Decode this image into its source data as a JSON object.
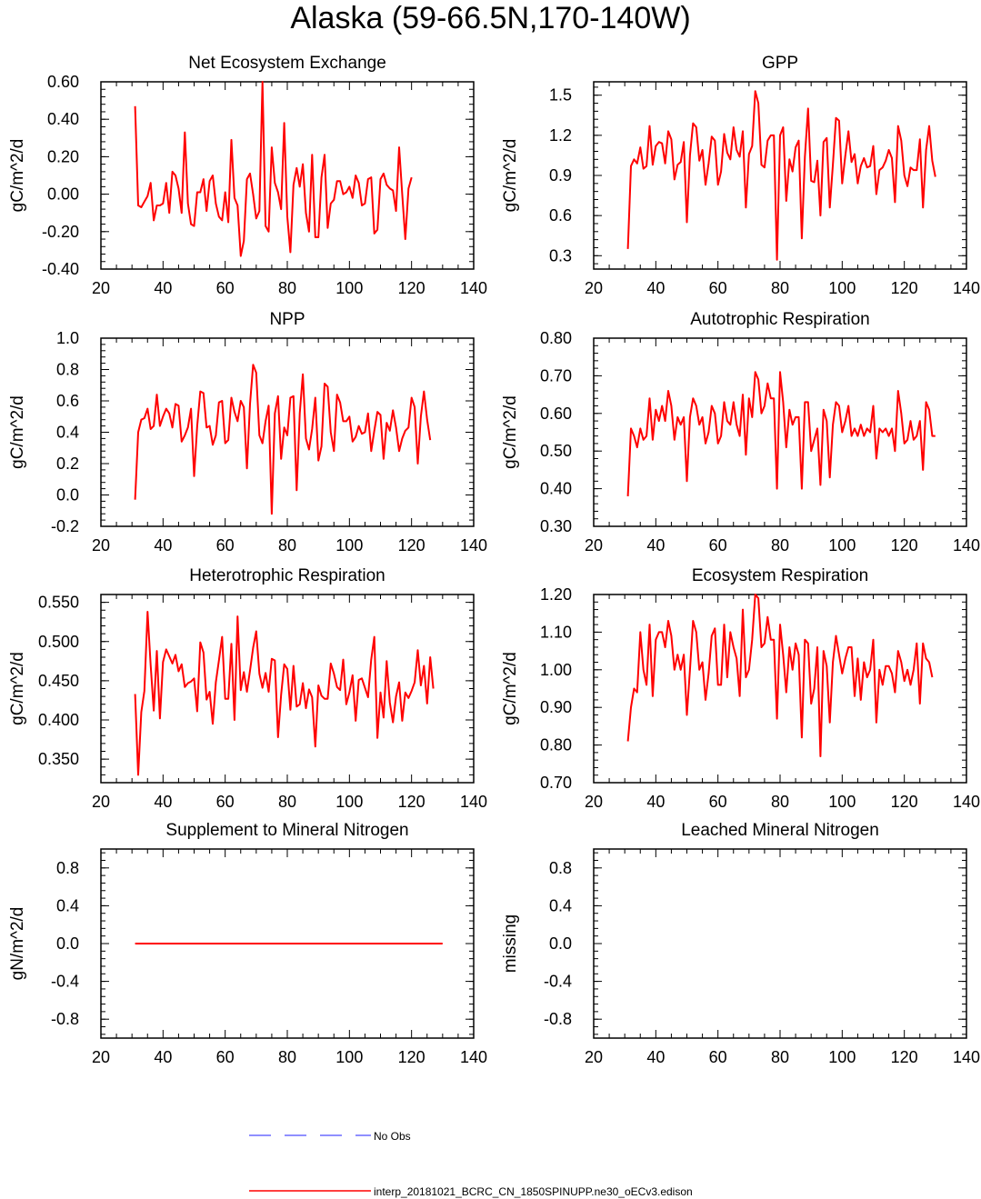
{
  "title": "Alaska (59-66.5N,170-140W)",
  "colors": {
    "model": "#ff0000",
    "obs": "#1f1fff",
    "axis": "#000000"
  },
  "chart_data": [
    {
      "type": "line",
      "title": "Net Ecosystem Exchange",
      "ylabel": "gC/m^2/d",
      "xlim": [
        20,
        140
      ],
      "ylim": [
        -0.4,
        0.6
      ],
      "yticks": [
        -0.4,
        -0.2,
        0.0,
        0.2,
        0.4,
        0.6
      ],
      "ytick_labels": [
        "-0.40",
        "-0.20",
        "0.00",
        "0.20",
        "0.40",
        "0.60"
      ],
      "xticks": [
        20,
        40,
        60,
        80,
        100,
        120,
        140
      ],
      "x_start": 31,
      "series": [
        {
          "name": "interp_20181021_BCRC_CN_1850SPINUPP.ne30_oECv3.edison",
          "values": [
            0.47,
            -0.06,
            -0.07,
            -0.04,
            -0.01,
            0.06,
            -0.14,
            -0.06,
            -0.06,
            -0.05,
            0.06,
            -0.1,
            0.12,
            0.1,
            0.03,
            -0.1,
            0.33,
            -0.05,
            -0.16,
            -0.17,
            0.01,
            0.01,
            0.08,
            -0.09,
            0.07,
            0.1,
            -0.05,
            -0.12,
            -0.14,
            0.01,
            -0.15,
            0.29,
            -0.02,
            -0.06,
            -0.33,
            -0.25,
            0.08,
            0.11,
            0.0,
            -0.13,
            -0.09,
            0.6,
            -0.17,
            -0.2,
            0.25,
            0.06,
            0.01,
            -0.08,
            0.38,
            -0.12,
            -0.31,
            0.05,
            0.14,
            0.04,
            0.16,
            -0.1,
            -0.2,
            0.21,
            -0.23,
            -0.23,
            0.09,
            0.21,
            -0.18,
            -0.05,
            -0.03,
            0.07,
            0.07,
            0.0,
            0.01,
            0.04,
            -0.02,
            0.1,
            0.06,
            -0.06,
            -0.05,
            0.08,
            0.09,
            -0.21,
            -0.19,
            0.08,
            0.11,
            0.05,
            0.03,
            0.02,
            -0.09,
            0.25,
            0.0,
            -0.24,
            0.03,
            0.09
          ]
        }
      ]
    },
    {
      "type": "line",
      "title": "GPP",
      "ylabel": "gC/m^2/d",
      "xlim": [
        20,
        140
      ],
      "ylim": [
        0.2,
        1.6
      ],
      "yticks": [
        0.3,
        0.6,
        0.9,
        1.2,
        1.5
      ],
      "ytick_labels": [
        "0.3",
        "0.6",
        "0.9",
        "1.2",
        "1.5"
      ],
      "xticks": [
        20,
        40,
        60,
        80,
        100,
        120,
        140
      ],
      "x_start": 31,
      "series": [
        {
          "name": "interp_20181021_BCRC_CN_1850SPINUPP.ne30_oECv3.edison",
          "values": [
            0.35,
            0.97,
            1.02,
            0.99,
            1.11,
            0.95,
            0.97,
            1.27,
            0.98,
            1.12,
            1.15,
            1.14,
            0.99,
            1.23,
            1.17,
            0.87,
            0.98,
            1.0,
            1.15,
            0.55,
            1.05,
            1.29,
            1.26,
            1.01,
            1.09,
            0.83,
            0.99,
            1.19,
            1.16,
            0.83,
            0.93,
            1.21,
            1.07,
            1.02,
            1.26,
            1.09,
            1.04,
            1.23,
            0.66,
            1.06,
            1.12,
            1.53,
            1.44,
            0.98,
            0.96,
            1.16,
            1.2,
            1.2,
            0.27,
            1.2,
            1.26,
            0.71,
            1.02,
            0.93,
            1.11,
            1.16,
            0.43,
            1.04,
            1.4,
            0.86,
            0.85,
            1.01,
            0.6,
            1.15,
            1.18,
            0.66,
            0.98,
            1.33,
            1.31,
            0.84,
            1.05,
            1.23,
            1.0,
            1.06,
            0.84,
            0.97,
            1.03,
            0.96,
            0.97,
            1.12,
            0.76,
            0.94,
            0.96,
            1.01,
            1.09,
            1.03,
            0.7,
            1.27,
            1.16,
            0.9,
            0.82,
            0.96,
            0.94,
            0.94,
            1.17,
            0.66,
            1.09,
            1.27,
            1.01,
            0.89
          ]
        }
      ]
    },
    {
      "type": "line",
      "title": "NPP",
      "ylabel": "gC/m^2/d",
      "xlim": [
        20,
        140
      ],
      "ylim": [
        -0.2,
        1.0
      ],
      "yticks": [
        -0.2,
        0.0,
        0.2,
        0.4,
        0.6,
        0.8,
        1.0
      ],
      "ytick_labels": [
        "-0.2",
        "0.0",
        "0.2",
        "0.4",
        "0.6",
        "0.8",
        "1.0"
      ],
      "xticks": [
        20,
        40,
        60,
        80,
        100,
        120,
        140
      ],
      "x_start": 31,
      "series": [
        {
          "name": "interp_20181021_BCRC_CN_1850SPINUPP.ne30_oECv3.edison",
          "values": [
            -0.03,
            0.4,
            0.48,
            0.49,
            0.55,
            0.42,
            0.44,
            0.64,
            0.44,
            0.5,
            0.55,
            0.52,
            0.43,
            0.58,
            0.57,
            0.34,
            0.38,
            0.43,
            0.55,
            0.12,
            0.44,
            0.66,
            0.65,
            0.43,
            0.44,
            0.32,
            0.38,
            0.59,
            0.6,
            0.33,
            0.35,
            0.62,
            0.53,
            0.47,
            0.6,
            0.56,
            0.17,
            0.58,
            0.83,
            0.78,
            0.38,
            0.33,
            0.47,
            0.57,
            -0.12,
            0.52,
            0.63,
            0.23,
            0.43,
            0.38,
            0.62,
            0.63,
            0.03,
            0.52,
            0.77,
            0.36,
            0.29,
            0.42,
            0.62,
            0.22,
            0.31,
            0.71,
            0.69,
            0.4,
            0.28,
            0.64,
            0.59,
            0.47,
            0.47,
            0.5,
            0.34,
            0.37,
            0.44,
            0.39,
            0.4,
            0.52,
            0.28,
            0.41,
            0.53,
            0.51,
            0.23,
            0.46,
            0.41,
            0.54,
            0.43,
            0.28,
            0.36,
            0.41,
            0.43,
            0.62,
            0.56,
            0.2,
            0.5,
            0.66,
            0.48,
            0.35
          ]
        }
      ]
    },
    {
      "type": "line",
      "title": "Autotrophic Respiration",
      "ylabel": "gC/m^2/d",
      "xlim": [
        20,
        140
      ],
      "ylim": [
        0.3,
        0.8
      ],
      "yticks": [
        0.3,
        0.4,
        0.5,
        0.6,
        0.7,
        0.8
      ],
      "ytick_labels": [
        "0.30",
        "0.40",
        "0.50",
        "0.60",
        "0.70",
        "0.80"
      ],
      "xticks": [
        20,
        40,
        60,
        80,
        100,
        120,
        140
      ],
      "x_start": 31,
      "series": [
        {
          "name": "interp_20181021_BCRC_CN_1850SPINUPP.ne30_oECv3.edison",
          "values": [
            0.38,
            0.56,
            0.54,
            0.51,
            0.56,
            0.53,
            0.54,
            0.64,
            0.53,
            0.61,
            0.58,
            0.62,
            0.58,
            0.66,
            0.62,
            0.53,
            0.59,
            0.57,
            0.59,
            0.42,
            0.59,
            0.64,
            0.62,
            0.57,
            0.59,
            0.52,
            0.55,
            0.62,
            0.6,
            0.52,
            0.54,
            0.63,
            0.58,
            0.57,
            0.63,
            0.57,
            0.54,
            0.65,
            0.49,
            0.64,
            0.59,
            0.71,
            0.69,
            0.6,
            0.62,
            0.68,
            0.64,
            0.64,
            0.4,
            0.71,
            0.63,
            0.51,
            0.61,
            0.57,
            0.59,
            0.59,
            0.4,
            0.63,
            0.63,
            0.5,
            0.53,
            0.56,
            0.41,
            0.61,
            0.58,
            0.43,
            0.57,
            0.63,
            0.62,
            0.55,
            0.58,
            0.62,
            0.54,
            0.56,
            0.54,
            0.57,
            0.54,
            0.56,
            0.55,
            0.62,
            0.48,
            0.56,
            0.55,
            0.56,
            0.54,
            0.56,
            0.5,
            0.66,
            0.6,
            0.52,
            0.53,
            0.58,
            0.53,
            0.54,
            0.58,
            0.45,
            0.63,
            0.61,
            0.54,
            0.54
          ]
        }
      ]
    },
    {
      "type": "line",
      "title": "Heterotrophic Respiration",
      "ylabel": "gC/m^2/d",
      "xlim": [
        20,
        140
      ],
      "ylim": [
        0.32,
        0.56
      ],
      "yticks": [
        0.35,
        0.4,
        0.45,
        0.5,
        0.55
      ],
      "ytick_labels": [
        "0.350",
        "0.400",
        "0.450",
        "0.500",
        "0.550"
      ],
      "xticks": [
        20,
        40,
        60,
        80,
        100,
        120,
        140
      ],
      "x_start": 31,
      "series": [
        {
          "name": "interp_20181021_BCRC_CN_1850SPINUPP.ne30_oECv3.edison",
          "values": [
            0.433,
            0.33,
            0.41,
            0.437,
            0.538,
            0.47,
            0.412,
            0.488,
            0.402,
            0.474,
            0.49,
            0.481,
            0.472,
            0.483,
            0.462,
            0.471,
            0.442,
            0.447,
            0.449,
            0.453,
            0.411,
            0.499,
            0.486,
            0.426,
            0.436,
            0.395,
            0.448,
            0.476,
            0.506,
            0.427,
            0.427,
            0.497,
            0.4,
            0.532,
            0.438,
            0.461,
            0.436,
            0.463,
            0.492,
            0.513,
            0.459,
            0.441,
            0.46,
            0.436,
            0.478,
            0.476,
            0.378,
            0.432,
            0.471,
            0.465,
            0.413,
            0.469,
            0.417,
            0.42,
            0.447,
            0.415,
            0.439,
            0.429,
            0.366,
            0.444,
            0.431,
            0.427,
            0.427,
            0.472,
            0.459,
            0.442,
            0.438,
            0.477,
            0.42,
            0.435,
            0.457,
            0.399,
            0.451,
            0.453,
            0.441,
            0.429,
            0.477,
            0.506,
            0.377,
            0.435,
            0.403,
            0.475,
            0.422,
            0.397,
            0.43,
            0.448,
            0.399,
            0.435,
            0.428,
            0.437,
            0.448,
            0.489,
            0.444,
            0.469,
            0.421,
            0.48,
            0.44
          ]
        }
      ]
    },
    {
      "type": "line",
      "title": "Ecosystem Respiration",
      "ylabel": "gC/m^2/d",
      "xlim": [
        20,
        140
      ],
      "ylim": [
        0.7,
        1.2
      ],
      "yticks": [
        0.7,
        0.8,
        0.9,
        1.0,
        1.1,
        1.2
      ],
      "ytick_labels": [
        "0.70",
        "0.80",
        "0.90",
        "1.00",
        "1.10",
        "1.20"
      ],
      "xticks": [
        20,
        40,
        60,
        80,
        100,
        120,
        140
      ],
      "x_start": 31,
      "series": [
        {
          "name": "interp_20181021_BCRC_CN_1850SPINUPP.ne30_oECv3.edison",
          "values": [
            0.81,
            0.9,
            0.95,
            0.94,
            1.1,
            1.0,
            0.96,
            1.12,
            0.93,
            1.08,
            1.1,
            1.1,
            1.06,
            1.13,
            1.09,
            1.0,
            1.04,
            1.0,
            1.04,
            0.88,
            1.0,
            1.13,
            1.1,
            1.0,
            1.02,
            0.92,
            0.99,
            1.09,
            1.11,
            0.96,
            0.96,
            1.12,
            0.98,
            1.1,
            1.06,
            1.03,
            0.93,
            1.16,
            0.98,
            1.0,
            1.08,
            1.2,
            1.19,
            1.06,
            1.07,
            1.14,
            1.08,
            1.08,
            0.87,
            1.12,
            1.04,
            0.94,
            1.06,
            1.0,
            1.07,
            1.04,
            0.82,
            1.08,
            1.07,
            0.91,
            0.95,
            1.06,
            0.77,
            1.05,
            1.01,
            0.86,
            1.02,
            1.09,
            1.04,
            0.99,
            1.03,
            1.06,
            1.06,
            0.93,
            1.03,
            0.92,
            1.02,
            0.98,
            1.0,
            1.08,
            0.86,
            1.0,
            0.96,
            1.01,
            1.01,
            0.99,
            0.94,
            1.05,
            1.02,
            0.97,
            1.0,
            0.96,
            1.0,
            1.07,
            0.91,
            1.07,
            1.03,
            1.02,
            0.98
          ]
        }
      ]
    },
    {
      "type": "line",
      "title": "Supplement to Mineral Nitrogen",
      "ylabel": "gN/m^2/d",
      "xlim": [
        20,
        140
      ],
      "ylim": [
        -1.0,
        1.0
      ],
      "yticks": [
        -0.8,
        -0.4,
        0.0,
        0.4,
        0.8
      ],
      "ytick_labels": [
        "-0.8",
        "-0.4",
        "0.0",
        "0.4",
        "0.8"
      ],
      "xticks": [
        20,
        40,
        60,
        80,
        100,
        120,
        140
      ],
      "x_start": 31,
      "series": [
        {
          "name": "interp_20181021_BCRC_CN_1850SPINUPP.ne30_oECv3.edison",
          "values": [
            0.0,
            0.0,
            0.0,
            0.0,
            0.0,
            0.0,
            0.0,
            0.0,
            0.0,
            0.0,
            0.0,
            0.0,
            0.0,
            0.0,
            0.0,
            0.0,
            0.0,
            0.0,
            0.0,
            0.0,
            0.0,
            0.0,
            0.0,
            0.0,
            0.0,
            0.0,
            0.0,
            0.0,
            0.0,
            0.0,
            0.0,
            0.0,
            0.0,
            0.0,
            0.0,
            0.0,
            0.0,
            0.0,
            0.0,
            0.0,
            0.0,
            0.0,
            0.0,
            0.0,
            0.0,
            0.0,
            0.0,
            0.0,
            0.0,
            0.0,
            0.0,
            0.0,
            0.0,
            0.0,
            0.0,
            0.0,
            0.0,
            0.0,
            0.0,
            0.0,
            0.0,
            0.0,
            0.0,
            0.0,
            0.0,
            0.0,
            0.0,
            0.0,
            0.0,
            0.0,
            0.0,
            0.0,
            0.0,
            0.0,
            0.0,
            0.0,
            0.0,
            0.0,
            0.0,
            0.0,
            0.0,
            0.0,
            0.0,
            0.0,
            0.0,
            0.0,
            0.0,
            0.0,
            0.0,
            0.0,
            0.0,
            0.0,
            0.0,
            0.0,
            0.0,
            0.0,
            0.0,
            0.0,
            0.0,
            0.0
          ]
        }
      ]
    },
    {
      "type": "line",
      "title": "Leached Mineral Nitrogen",
      "ylabel": "missing",
      "xlim": [
        20,
        140
      ],
      "ylim": [
        -1.0,
        1.0
      ],
      "yticks": [
        -0.8,
        -0.4,
        0.0,
        0.4,
        0.8
      ],
      "ytick_labels": [
        "-0.8",
        "-0.4",
        "0.0",
        "0.4",
        "0.8"
      ],
      "xticks": [
        20,
        40,
        60,
        80,
        100,
        120,
        140
      ],
      "x_start": 31,
      "series": []
    }
  ],
  "legend": {
    "obs_label": "No Obs",
    "model_label": "interp_20181021_BCRC_CN_1850SPINUPP.ne30_oECv3.edison"
  }
}
